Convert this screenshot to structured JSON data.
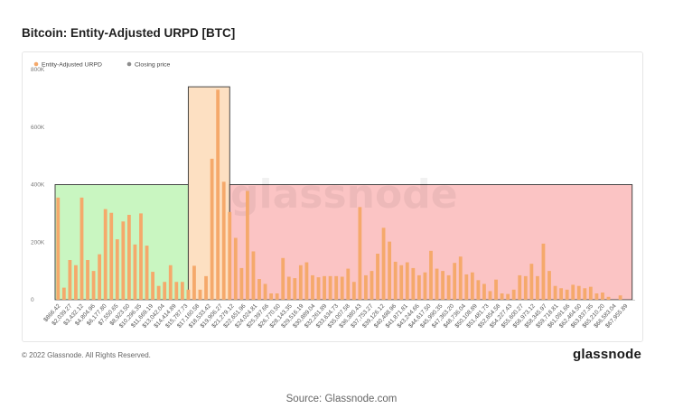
{
  "title": "Bitcoin: Entity-Adjusted URPD [BTC]",
  "footer": {
    "copyright": "© 2022 Glassnode. All Rights Reserved.",
    "brand": "glassnode",
    "source": "Source: Glassnode.com"
  },
  "watermark": "glassnode",
  "colors": {
    "bar": "#f5a96b",
    "price_marker": "#8c8c8c",
    "zone_left_fill": "#c9f6c1",
    "zone_left_stroke": "#333333",
    "zone_mid_fill": "#fde0c2",
    "zone_right_fill": "#fbc4c4",
    "axis": "#cccccc"
  },
  "chart_data": {
    "type": "bar",
    "title": "Bitcoin: Entity-Adjusted URPD [BTC]",
    "legend": [
      {
        "name": "Entity-Adjusted URPD",
        "color": "#f5a96b"
      },
      {
        "name": "Closing price",
        "color": "#8c8c8c"
      }
    ],
    "legend_position": "top-left",
    "ylim": [
      0,
      800000
    ],
    "y_ticks": [
      {
        "value": 0,
        "label": "0"
      },
      {
        "value": 200000,
        "label": "200K"
      },
      {
        "value": 400000,
        "label": "400K"
      },
      {
        "value": 600000,
        "label": "600K"
      },
      {
        "value": 800000,
        "label": "800K"
      }
    ],
    "x_tick_labels": [
      "$866.42",
      "$2,039.27",
      "$3,432.12",
      "$4,804.96",
      "$6,177.80",
      "$7,550.65",
      "$8,923.50",
      "$10,296.35",
      "$11,669.19",
      "$13,042.04",
      "$14,414.89",
      "$15,787.73",
      "$17,160.58",
      "$18,533.42",
      "$19,906.27",
      "$21,279.12",
      "$22,651.96",
      "$24,024.81",
      "$25,397.66",
      "$26,770.50",
      "$28,143.35",
      "$29,516.19",
      "$30,889.04",
      "$32,261.89",
      "$33,634.73",
      "$35,007.58",
      "$36,380.43",
      "$37,753.27",
      "$39,126.12",
      "$40,498.96",
      "$41,871.81",
      "$43,244.66",
      "$44,617.50",
      "$45,990.35",
      "$47,363.20",
      "$48,736.04",
      "$50,108.89",
      "$51,481.73",
      "$52,854.58",
      "$54,227.43",
      "$55,600.27",
      "$56,973.12",
      "$58,345.97",
      "$59,718.81",
      "$61,091.66",
      "$62,464.50",
      "$63,837.35",
      "$65,210.20",
      "$66,583.04",
      "$67,955.89"
    ],
    "values": [
      355000,
      42000,
      138000,
      120000,
      355000,
      138000,
      100000,
      158000,
      315000,
      302000,
      210000,
      272000,
      295000,
      192000,
      300000,
      188000,
      97000,
      48000,
      62000,
      120000,
      62000,
      62000,
      35000,
      118000,
      35000,
      82000,
      490000,
      730000,
      410000,
      305000,
      215000,
      110000,
      378000,
      168000,
      72000,
      55000,
      22000,
      22000,
      145000,
      80000,
      75000,
      120000,
      130000,
      85000,
      78000,
      82000,
      82000,
      82000,
      80000,
      108000,
      62000,
      322000,
      85000,
      100000,
      160000,
      250000,
      202000,
      132000,
      120000,
      130000,
      110000,
      85000,
      95000,
      170000,
      108000,
      100000,
      85000,
      128000,
      150000,
      88000,
      95000,
      68000,
      55000,
      30000,
      70000,
      22000,
      20000,
      35000,
      85000,
      82000,
      125000,
      82000,
      195000,
      100000,
      48000,
      40000,
      35000,
      52000,
      48000,
      40000,
      45000,
      22000,
      25000,
      10000,
      0,
      15000,
      0,
      0
    ],
    "zones": [
      {
        "from_index": 0,
        "to_index": 22.5,
        "y_top": 400000,
        "color": "#c9f6c1"
      },
      {
        "from_index": 22.5,
        "to_index": 29.5,
        "y_top": 740000,
        "color": "#fde0c2"
      },
      {
        "from_index": 29.5,
        "to_index": 97.5,
        "y_top": 400000,
        "color": "#fbc4c4"
      }
    ]
  }
}
